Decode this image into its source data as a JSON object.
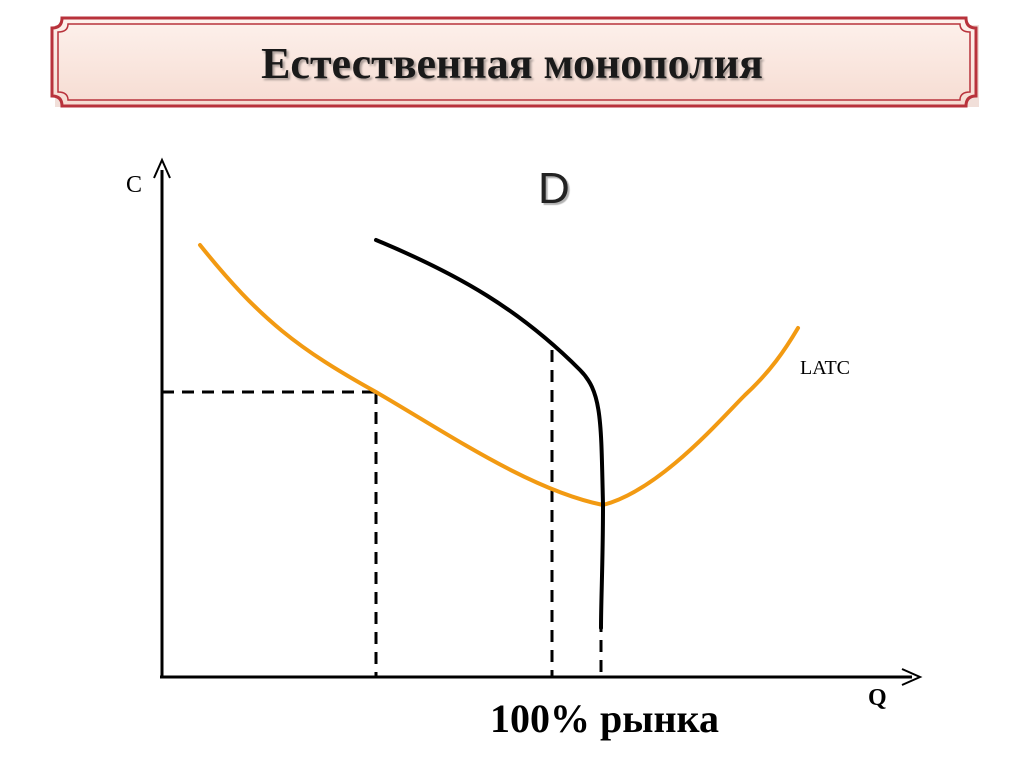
{
  "slide": {
    "title": "Естественная монополия"
  },
  "diagram": {
    "y_axis_label": "С",
    "x_axis_label": "Q",
    "demand_label": "D",
    "cost_curve_label": "LATC",
    "market_label": "100% рынка",
    "colors": {
      "cost_curve": "#f29a12",
      "demand_curve": "#000000",
      "banner_fill": "#fbe9e3",
      "banner_border": "#b8323b"
    }
  }
}
